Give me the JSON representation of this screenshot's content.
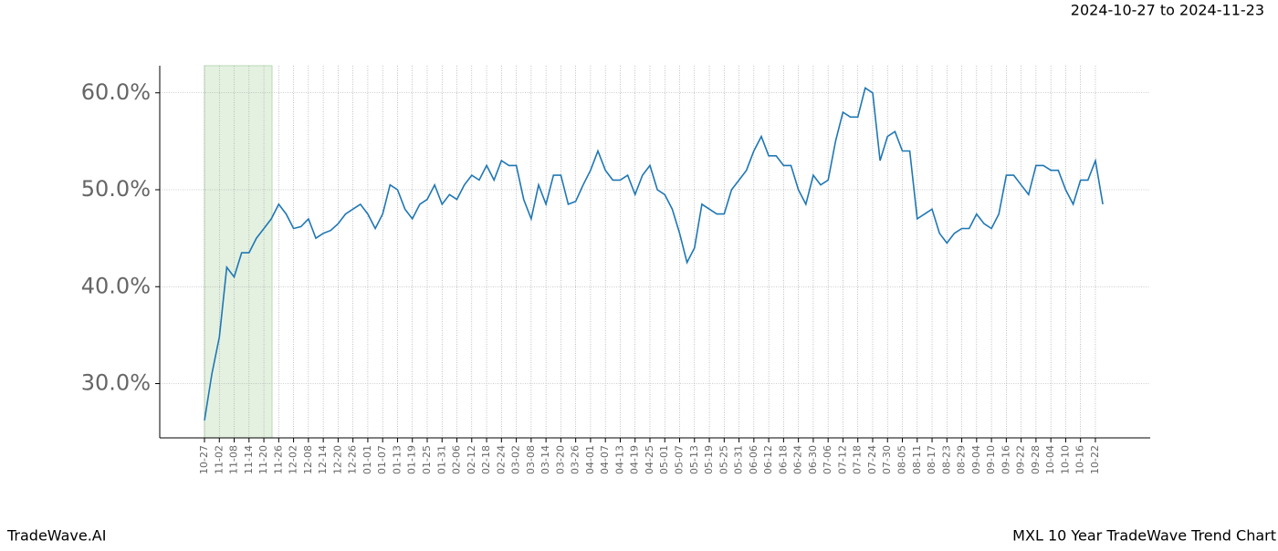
{
  "chart_data": {
    "type": "line",
    "title": "MXL 10 Year TradeWave Trend Chart",
    "subtitle": "2024-10-27 to 2024-11-23",
    "source": "TradeWave.AI",
    "categories": [
      "10-27",
      null,
      "11-02",
      null,
      "11-08",
      null,
      "11-14",
      null,
      "11-20",
      null,
      "11-26",
      null,
      "12-02",
      null,
      "12-08",
      null,
      "12-14",
      null,
      "12-20",
      null,
      "12-26",
      null,
      "01-01",
      null,
      "01-07",
      null,
      "01-13",
      null,
      "01-19",
      null,
      "01-25",
      null,
      "01-31",
      null,
      "02-06",
      null,
      "02-12",
      null,
      "02-18",
      null,
      "02-24",
      null,
      "03-02",
      null,
      "03-08",
      null,
      "03-14",
      null,
      "03-20",
      null,
      "03-26",
      null,
      "04-01",
      null,
      "04-07",
      null,
      "04-13",
      null,
      "04-19",
      null,
      "04-25",
      null,
      "05-01",
      null,
      "05-07",
      null,
      "05-13",
      null,
      "05-19",
      null,
      "05-25",
      null,
      "05-31",
      null,
      "06-06",
      null,
      "06-12",
      null,
      "06-18",
      null,
      "06-24",
      null,
      "06-30",
      null,
      "07-06",
      null,
      "07-12",
      null,
      "07-18",
      null,
      "07-24",
      null,
      "07-30",
      null,
      "08-05",
      null,
      "08-11",
      null,
      "08-17",
      null,
      "08-23",
      null,
      "08-29",
      null,
      "09-04",
      null,
      "09-10",
      null,
      "09-16",
      null,
      "09-22",
      null,
      "09-28",
      null,
      "10-04",
      null,
      "10-10",
      null,
      "10-16",
      null,
      "10-22",
      null
    ],
    "series": [
      {
        "color": "#1f77b4",
        "values": [
          26.2,
          31,
          34.8,
          42,
          41,
          43.5,
          43.5,
          45,
          46,
          47,
          48.5,
          47.5,
          46,
          46.2,
          47,
          45,
          45.5,
          45.8,
          46.5,
          47.5,
          48,
          48.5,
          47.5,
          46,
          47.5,
          50.5,
          50,
          48,
          47,
          48.5,
          49,
          50.5,
          48.5,
          49.5,
          49,
          50.5,
          51.5,
          51,
          52.5,
          51,
          53,
          52.5,
          52.5,
          49,
          47,
          50.5,
          48.5,
          51.5,
          51.5,
          48.5,
          48.8,
          50.5,
          52,
          54,
          52,
          51,
          51,
          51.5,
          49.5,
          51.5,
          52.5,
          50,
          49.5,
          48,
          45.5,
          42.5,
          44,
          48.5,
          48,
          47.5,
          47.5,
          50,
          51,
          52,
          54,
          55.5,
          53.5,
          53.5,
          52.5,
          52.5,
          50,
          48.5,
          51.5,
          50.5,
          51,
          55,
          58,
          57.5,
          57.5,
          60.5,
          60,
          53,
          55.5,
          56,
          54,
          54,
          47,
          47.5,
          48,
          45.5,
          44.5,
          45.5,
          46,
          46,
          47.5,
          46.5,
          46,
          47.5,
          51.5,
          51.5,
          50.5,
          49.5,
          52.5,
          52.5,
          52,
          52,
          50,
          48.5,
          51,
          51,
          53,
          48.5
        ]
      }
    ],
    "ylim": [
      24.4,
      62.8
    ],
    "yticks": [
      {
        "value": 30,
        "label": "30.0%"
      },
      {
        "value": 40,
        "label": "40.0%"
      },
      {
        "value": 50,
        "label": "50.0%"
      },
      {
        "value": 60,
        "label": "60.0%"
      }
    ],
    "grid": true
  }
}
